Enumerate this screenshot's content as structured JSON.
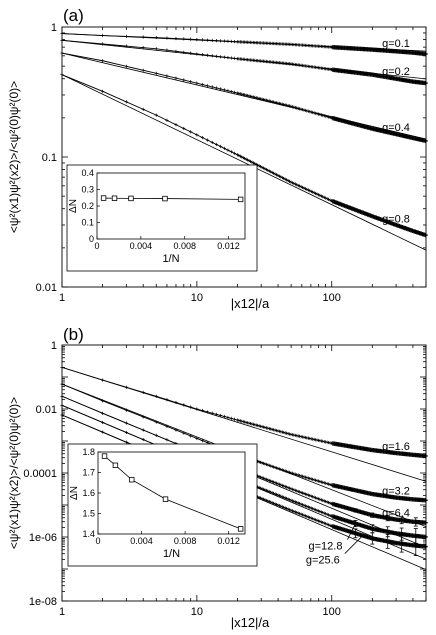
{
  "chart_data": [
    {
      "type": "line",
      "panel_label": "(a)",
      "xlabel": "|x12|/a",
      "ylabel": "<ψ²(x1)ψ²(x2)>/<ψ²(0)ψ²(0)>",
      "xscale": "log",
      "yscale": "log",
      "xlim": [
        1,
        500
      ],
      "ylim": [
        0.01,
        1
      ],
      "xticks": [
        {
          "value": 1,
          "label": "1"
        },
        {
          "value": 10,
          "label": "10"
        },
        {
          "value": 100,
          "label": "100"
        }
      ],
      "yticks": [
        {
          "value": 0.01,
          "label": "0.01"
        },
        {
          "value": 0.1,
          "label": "0.1"
        },
        {
          "value": 1,
          "label": "1"
        }
      ],
      "series": [
        {
          "name": "g=0.1",
          "data_x": [
            1,
            2,
            5,
            10,
            20,
            50,
            100,
            200,
            300,
            400,
            500
          ],
          "data_y": [
            0.89,
            0.86,
            0.83,
            0.8,
            0.77,
            0.735,
            0.7,
            0.67,
            0.65,
            0.635,
            0.62
          ],
          "fit_exponent": -0.05
        },
        {
          "name": "g=0.2",
          "data_x": [
            1,
            2,
            5,
            10,
            20,
            50,
            100,
            200,
            300,
            400,
            500
          ],
          "data_y": [
            0.79,
            0.74,
            0.68,
            0.62,
            0.57,
            0.52,
            0.47,
            0.43,
            0.4,
            0.38,
            0.37
          ],
          "fit_exponent": -0.11
        },
        {
          "name": "g=0.4",
          "data_x": [
            1,
            2,
            5,
            10,
            20,
            50,
            100,
            200,
            300,
            400,
            500
          ],
          "data_y": [
            0.63,
            0.55,
            0.44,
            0.37,
            0.31,
            0.245,
            0.2,
            0.165,
            0.15,
            0.14,
            0.133
          ],
          "fit_exponent": -0.245
        },
        {
          "name": "g=0.8",
          "data_x": [
            1,
            2,
            5,
            10,
            20,
            50,
            100,
            200,
            300,
            400,
            500
          ],
          "data_y": [
            0.43,
            0.32,
            0.21,
            0.148,
            0.104,
            0.064,
            0.046,
            0.035,
            0.03,
            0.027,
            0.025
          ],
          "fit_exponent": -0.5
        }
      ],
      "inset": {
        "type": "line",
        "xlabel": "1/N",
        "ylabel": "ΔN",
        "xlim": [
          0,
          0.0135
        ],
        "ylim": [
          0,
          0.4
        ],
        "xticks": [
          {
            "value": 0,
            "label": "0"
          },
          {
            "value": 0.004,
            "label": "0.004"
          },
          {
            "value": 0.008,
            "label": "0.008"
          },
          {
            "value": 0.012,
            "label": "0.012"
          }
        ],
        "yticks": [
          {
            "value": 0,
            "label": "0"
          },
          {
            "value": 0.1,
            "label": "0.1"
          },
          {
            "value": 0.2,
            "label": "0.2"
          },
          {
            "value": 0.3,
            "label": "0.3"
          },
          {
            "value": 0.4,
            "label": "0.4"
          }
        ],
        "x": [
          0.0006,
          0.0016,
          0.0031,
          0.0062,
          0.0131
        ],
        "y": [
          0.248,
          0.247,
          0.246,
          0.245,
          0.24
        ]
      }
    },
    {
      "type": "line",
      "panel_label": "(b)",
      "xlabel": "|x12|/a",
      "ylabel": "<ψ²(x1)ψ²(x2)>/<ψ²(0)ψ²(0)>",
      "xscale": "log",
      "yscale": "log",
      "xlim": [
        1,
        500
      ],
      "ylim": [
        1e-08,
        1
      ],
      "xticks": [
        {
          "value": 1,
          "label": "1"
        },
        {
          "value": 10,
          "label": "10"
        },
        {
          "value": 100,
          "label": "100"
        }
      ],
      "yticks": [
        {
          "value": 1e-08,
          "label": "1e-08"
        },
        {
          "value": 1e-06,
          "label": "1e-06"
        },
        {
          "value": 0.0001,
          "label": "0.0001"
        },
        {
          "value": 0.01,
          "label": "0.01"
        },
        {
          "value": 1,
          "label": "1"
        }
      ],
      "series": [
        {
          "name": "g=1.6",
          "data_x": [
            1,
            2,
            5,
            10,
            20,
            50,
            100,
            200,
            300,
            400,
            500
          ],
          "data_y": [
            0.2,
            0.08,
            0.025,
            0.01,
            0.0045,
            0.0016,
            0.00085,
            0.00052,
            0.00042,
            0.00037,
            0.00034
          ],
          "fit_exponent": -1.32
        },
        {
          "name": "g=3.2",
          "data_x": [
            1,
            2,
            5,
            10,
            20,
            50,
            100,
            200,
            300,
            400,
            500
          ],
          "data_y": [
            0.06,
            0.018,
            0.0039,
            0.0012,
            0.00038,
            0.0001,
            4.2e-05,
            2.2e-05,
            1.7e-05,
            1.5e-05,
            1.4e-05
          ],
          "fit_exponent": -1.65
        },
        {
          "name": "g=6.4",
          "data_x": [
            1,
            2,
            5,
            10,
            20,
            50,
            100,
            200,
            300,
            400,
            500
          ],
          "data_y": [
            0.025,
            0.0073,
            0.0015,
            0.00045,
            0.00014,
            3.2e-05,
            1.1e-05,
            4.8e-06,
            3.5e-06,
            3e-06,
            2.8e-06
          ],
          "fit_exponent": -1.75
        },
        {
          "name": "g=12.8",
          "data_x": [
            1,
            2,
            5,
            10,
            20,
            50,
            100,
            200,
            300,
            400,
            500
          ],
          "data_y": [
            0.013,
            0.0038,
            0.00075,
            0.00022,
            6.5e-05,
            1.4e-05,
            4.5e-06,
            1.8e-06,
            1.3e-06,
            1.1e-06,
            1e-06
          ],
          "fit_exponent": -1.78
        },
        {
          "name": "g=25.6",
          "data_x": [
            1,
            2,
            5,
            10,
            20,
            50,
            100,
            200,
            300,
            400,
            500
          ],
          "data_y": [
            0.0065,
            0.0019,
            0.00037,
            0.00011,
            3.2e-05,
            6.8e-06,
            2.2e-06,
            9e-07,
            6.5e-07,
            5.5e-07,
            5e-07
          ],
          "fit_exponent": -1.79
        }
      ],
      "inset": {
        "type": "line",
        "xlabel": "1/N",
        "ylabel": "ΔN",
        "xlim": [
          0,
          0.0135
        ],
        "ylim": [
          1.4,
          1.8
        ],
        "xticks": [
          {
            "value": 0,
            "label": "0"
          },
          {
            "value": 0.004,
            "label": "0.004"
          },
          {
            "value": 0.008,
            "label": "0.008"
          },
          {
            "value": 0.012,
            "label": "0.012"
          }
        ],
        "yticks": [
          {
            "value": 1.4,
            "label": "1.4"
          },
          {
            "value": 1.5,
            "label": "1.5"
          },
          {
            "value": 1.6,
            "label": "1.6"
          },
          {
            "value": 1.7,
            "label": "1.7"
          },
          {
            "value": 1.8,
            "label": "1.8"
          }
        ],
        "x": [
          0.0006,
          0.0016,
          0.0031,
          0.0062,
          0.0131
        ],
        "y": [
          1.78,
          1.735,
          1.665,
          1.57,
          1.425
        ]
      }
    }
  ]
}
